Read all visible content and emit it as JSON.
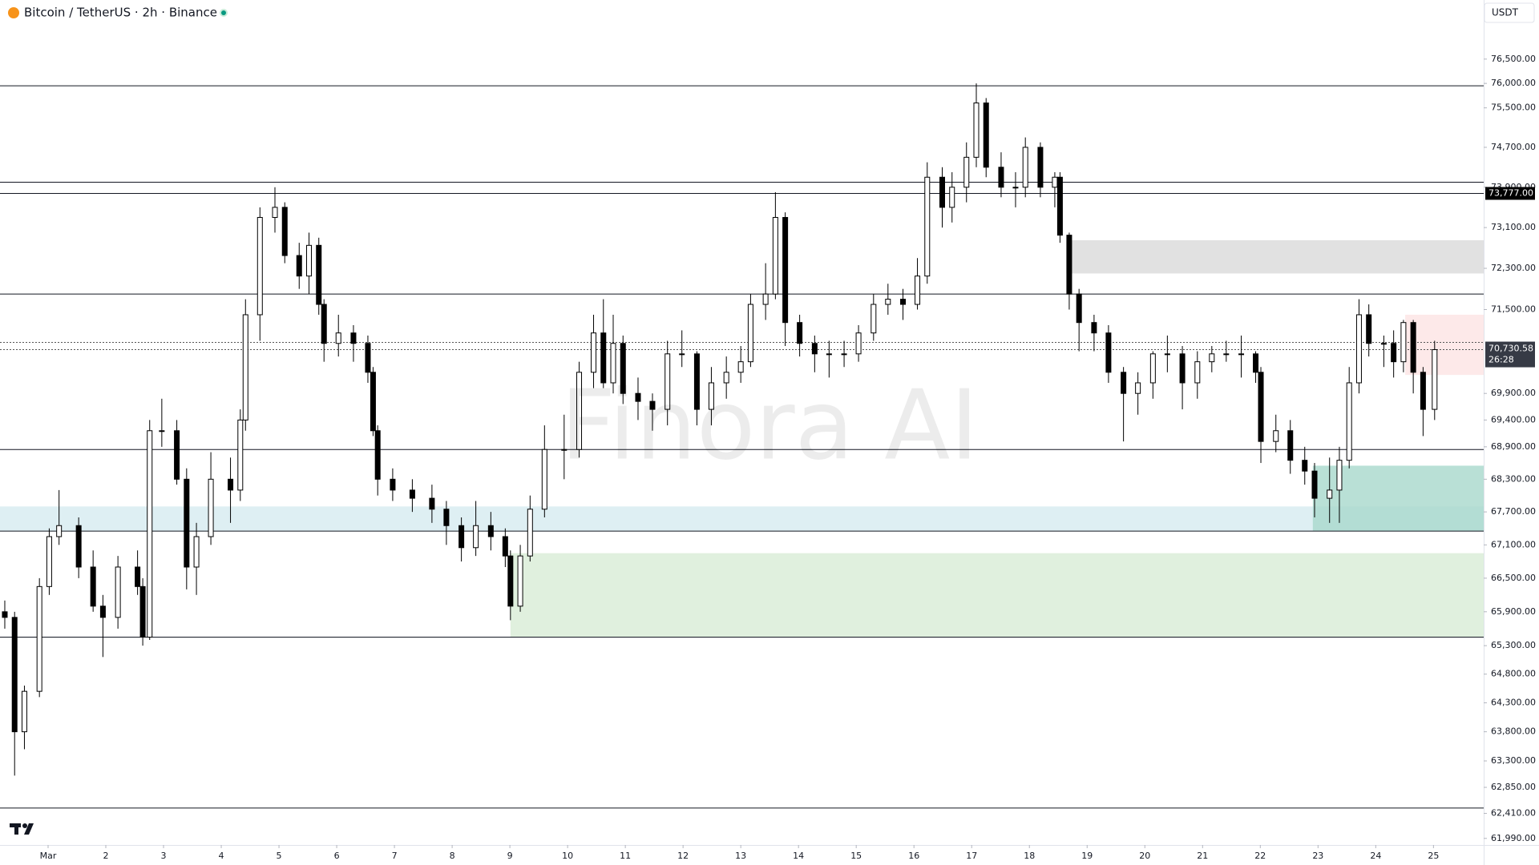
{
  "header": {
    "symbol": "Bitcoin / TetherUS · 2h · Binance",
    "currency": "USDT",
    "watermark": "Finora AI"
  },
  "chart_data": {
    "type": "candlestick",
    "log_scale": true,
    "up_color": "#ffffff",
    "down_color": "#000000",
    "xlim": [
      0.167,
      25.87
    ],
    "ylim": [
      61880,
      77730
    ],
    "xticks": [
      {
        "value": 1,
        "label": "Mar"
      },
      2,
      3,
      4,
      5,
      6,
      7,
      8,
      9,
      10,
      11,
      12,
      13,
      14,
      15,
      16,
      17,
      18,
      19,
      20,
      21,
      22,
      23,
      24,
      25
    ],
    "yticks": [
      {
        "value": 76500,
        "label": "76,500.00"
      },
      {
        "value": 76000,
        "label": "76,000.00"
      },
      {
        "value": 75500,
        "label": "75,500.00"
      },
      {
        "value": 74700,
        "label": "74,700.00"
      },
      {
        "value": 73900,
        "label": "73,900.00"
      },
      {
        "value": 73100,
        "label": "73,100.00"
      },
      {
        "value": 72300,
        "label": "72,300.00"
      },
      {
        "value": 71500,
        "label": "71,500.00"
      },
      {
        "value": 69900,
        "label": "69,900.00"
      },
      {
        "value": 69400,
        "label": "69,400.00"
      },
      {
        "value": 68900,
        "label": "68,900.00"
      },
      {
        "value": 68300,
        "label": "68,300.00"
      },
      {
        "value": 67700,
        "label": "67,700.00"
      },
      {
        "value": 67100,
        "label": "67,100.00"
      },
      {
        "value": 66500,
        "label": "66,500.00"
      },
      {
        "value": 65900,
        "label": "65,900.00"
      },
      {
        "value": 65300,
        "label": "65,300.00"
      },
      {
        "value": 64800,
        "label": "64,800.00"
      },
      {
        "value": 64300,
        "label": "64,300.00"
      },
      {
        "value": 63800,
        "label": "63,800.00"
      },
      {
        "value": 63300,
        "label": "63,300.00"
      },
      {
        "value": 62850,
        "label": "62,850.00"
      },
      {
        "value": 62410,
        "label": "62,410.00"
      },
      {
        "value": 61990,
        "label": "61,990.00"
      }
    ],
    "x": [
      0.25,
      0.42,
      0.59,
      0.85,
      1.02,
      1.19,
      1.53,
      1.78,
      1.95,
      2.21,
      2.55,
      2.64,
      2.76,
      2.97,
      3.23,
      3.4,
      3.57,
      3.82,
      4.16,
      4.33,
      4.42,
      4.67,
      4.93,
      5.1,
      5.35,
      5.52,
      5.69,
      5.78,
      6.03,
      6.29,
      6.54,
      6.63,
      6.71,
      6.97,
      7.31,
      7.65,
      7.9,
      8.16,
      8.41,
      8.67,
      8.92,
      9.01,
      9.18,
      9.35,
      9.6,
      9.94,
      10.2,
      10.45,
      10.62,
      10.79,
      10.96,
      11.22,
      11.47,
      11.73,
      11.98,
      12.24,
      12.49,
      12.75,
      13.0,
      13.17,
      13.43,
      13.6,
      13.77,
      14.02,
      14.28,
      14.53,
      14.79,
      15.04,
      15.3,
      15.55,
      15.81,
      16.06,
      16.23,
      16.49,
      16.66,
      16.91,
      17.08,
      17.25,
      17.51,
      17.76,
      17.93,
      18.19,
      18.44,
      18.53,
      18.69,
      18.86,
      19.12,
      19.37,
      19.63,
      19.88,
      20.14,
      20.39,
      20.65,
      20.91,
      21.16,
      21.41,
      21.67,
      21.92,
      22.01,
      22.27,
      22.52,
      22.77,
      22.94,
      23.2,
      23.37,
      23.54,
      23.71,
      23.88,
      24.14,
      24.31,
      24.48,
      24.65,
      24.82,
      25.02
    ],
    "open": [
      65900,
      65800,
      63800,
      64500,
      66350,
      67250,
      67450,
      66700,
      66000,
      65800,
      66700,
      66350,
      65450,
      69200,
      69200,
      68300,
      66700,
      67250,
      68300,
      68100,
      69400,
      71400,
      73300,
      73500,
      72550,
      72150,
      72750,
      71600,
      70850,
      71050,
      70850,
      70300,
      69200,
      68300,
      68100,
      67950,
      67750,
      67450,
      67050,
      67450,
      67250,
      66900,
      66000,
      66900,
      67750,
      68850,
      68850,
      70300,
      71050,
      70100,
      70850,
      69900,
      69750,
      69600,
      70650,
      70650,
      69600,
      70100,
      70300,
      70500,
      71600,
      71800,
      73300,
      71250,
      70850,
      70650,
      70650,
      70650,
      71050,
      71600,
      71700,
      71600,
      72150,
      74100,
      73500,
      73900,
      74500,
      75600,
      74300,
      73900,
      73900,
      74700,
      73900,
      74100,
      72950,
      71800,
      71250,
      71050,
      70300,
      69900,
      70100,
      70650,
      70650,
      70100,
      70500,
      70650,
      70650,
      70650,
      70300,
      69000,
      69200,
      68650,
      68450,
      67950,
      68100,
      68650,
      70100,
      71400,
      70850,
      70850,
      70500,
      71250,
      70300,
      69600
    ],
    "high": [
      66100,
      65900,
      64600,
      66500,
      67400,
      68100,
      67600,
      67000,
      66200,
      66900,
      67000,
      66500,
      69400,
      69800,
      69400,
      68500,
      67500,
      68800,
      68700,
      69600,
      71700,
      73500,
      73900,
      73600,
      72800,
      73000,
      72900,
      71700,
      71400,
      71200,
      71000,
      70400,
      69300,
      68500,
      68300,
      68200,
      67900,
      67600,
      67900,
      67700,
      67400,
      67000,
      67100,
      68000,
      69300,
      69500,
      70500,
      71400,
      71700,
      71400,
      71000,
      70200,
      69900,
      70900,
      71100,
      70700,
      70400,
      70600,
      70800,
      71800,
      72400,
      73800,
      73400,
      71400,
      71000,
      70900,
      70900,
      71200,
      71800,
      72000,
      71900,
      72500,
      74400,
      74300,
      74200,
      74800,
      76000,
      75700,
      74600,
      74200,
      74900,
      74800,
      74200,
      74200,
      73000,
      71900,
      71400,
      71200,
      70400,
      70300,
      70700,
      71000,
      70800,
      70700,
      70800,
      70900,
      71000,
      70700,
      70400,
      69500,
      69400,
      68900,
      68600,
      68700,
      68900,
      70400,
      71700,
      71600,
      71000,
      71100,
      71300,
      71300,
      70400,
      70900
    ],
    "low": [
      65600,
      63050,
      63500,
      64400,
      66200,
      67100,
      66500,
      65900,
      65100,
      65600,
      66200,
      65300,
      65400,
      68900,
      68200,
      66300,
      66200,
      67100,
      67500,
      67900,
      69200,
      70900,
      73000,
      72400,
      71900,
      71800,
      71400,
      70500,
      70600,
      70500,
      70100,
      69100,
      68000,
      67900,
      67700,
      67500,
      67100,
      66800,
      66900,
      67000,
      66700,
      65750,
      65900,
      66800,
      67600,
      68300,
      68700,
      70000,
      70000,
      69900,
      69700,
      69400,
      69200,
      69300,
      70400,
      69300,
      69300,
      69800,
      70100,
      70400,
      71300,
      71700,
      70800,
      70600,
      70300,
      70200,
      70400,
      70500,
      70900,
      71400,
      71300,
      71500,
      72000,
      73100,
      73200,
      73600,
      74300,
      74100,
      73700,
      73500,
      73700,
      73700,
      73500,
      72800,
      71500,
      70700,
      70700,
      70100,
      69000,
      69500,
      69800,
      70300,
      69600,
      69800,
      70300,
      70500,
      70200,
      70100,
      68600,
      68800,
      68400,
      68200,
      67600,
      67500,
      67500,
      68500,
      69900,
      70600,
      70400,
      70200,
      70300,
      69900,
      69100,
      69400
    ],
    "close": [
      65800,
      63800,
      64500,
      66350,
      67250,
      67450,
      66700,
      66000,
      65800,
      66700,
      66350,
      65450,
      69200,
      69200,
      68300,
      66700,
      67250,
      68300,
      68100,
      69400,
      71400,
      73300,
      73500,
      72550,
      72150,
      72750,
      71600,
      70850,
      71050,
      70850,
      70300,
      69200,
      68300,
      68100,
      67950,
      67750,
      67450,
      67050,
      67450,
      67250,
      66900,
      66000,
      66900,
      67750,
      68850,
      68850,
      70300,
      71050,
      70100,
      70850,
      69900,
      69750,
      69600,
      70650,
      70650,
      69600,
      70100,
      70300,
      70500,
      71600,
      71800,
      73300,
      71250,
      70850,
      70650,
      70650,
      70650,
      71050,
      71600,
      71700,
      71600,
      72150,
      74100,
      73500,
      73900,
      74500,
      75600,
      74300,
      73900,
      73900,
      74700,
      73900,
      74100,
      72950,
      71800,
      71250,
      71050,
      70300,
      69900,
      70100,
      70650,
      70650,
      70100,
      70500,
      70650,
      70650,
      70650,
      70300,
      69000,
      69200,
      68650,
      68450,
      67950,
      68100,
      68650,
      70100,
      71400,
      70850,
      70850,
      70500,
      71250,
      70300,
      69600,
      70730.58
    ],
    "levels": [
      75950,
      74000,
      73777,
      71800,
      68850,
      67350,
      65450,
      62500
    ],
    "dotted_levels": [
      70870
    ],
    "zones": [
      {
        "x0": 18.64,
        "x1": 25.87,
        "y0": 72200,
        "y1": 72850,
        "color": "#d9d9d9"
      },
      {
        "x0": 24.51,
        "x1": 25.87,
        "y0": 70250,
        "y1": 71400,
        "color": "#fde4e4"
      },
      {
        "x0": 0.167,
        "x1": 25.87,
        "y0": 67350,
        "y1": 67800,
        "color": "#d6ebf0"
      },
      {
        "x0": 22.91,
        "x1": 25.87,
        "y0": 67350,
        "y1": 68550,
        "color": "#a8d8cc"
      },
      {
        "x0": 9.01,
        "x1": 25.87,
        "y0": 65450,
        "y1": 66950,
        "color": "#d8ecd6"
      }
    ],
    "marked_price": {
      "value": 73777,
      "label": "73,777.00"
    },
    "last_price": {
      "value": 70730.58,
      "label": "70,730.58",
      "countdown": "26:28"
    }
  }
}
